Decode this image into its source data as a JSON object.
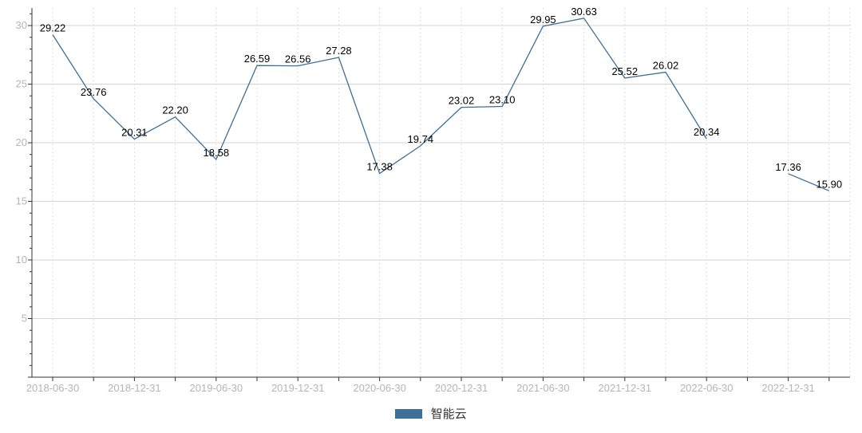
{
  "chart_data": {
    "type": "line",
    "x": [
      "2018-06-30",
      "2018-09-30",
      "2018-12-31",
      "2019-03-31",
      "2019-06-30",
      "2019-09-30",
      "2019-12-31",
      "2020-03-31",
      "2020-06-30",
      "2020-09-30",
      "2020-12-31",
      "2021-03-31",
      "2021-06-30",
      "2021-09-30",
      "2021-12-31",
      "2022-03-31",
      "2022-06-30",
      "2022-09-30",
      "2022-12-31",
      "2023-03-31"
    ],
    "x_tick_labels": [
      "2018-06-30",
      "2018-12-31",
      "2019-06-30",
      "2019-12-31",
      "2020-06-30",
      "2020-12-31",
      "2021-06-30",
      "2021-12-31",
      "2022-06-30",
      "2022-12-31"
    ],
    "y_ticks": [
      5,
      10,
      15,
      20,
      25,
      30
    ],
    "ylim": [
      0,
      31.5
    ],
    "grid": true,
    "legend_position": "bottom-center",
    "series": [
      {
        "name": "智能云",
        "color": "#3c6f99",
        "values": [
          29.22,
          23.76,
          20.31,
          22.2,
          18.58,
          26.59,
          26.56,
          27.28,
          17.38,
          19.74,
          23.02,
          23.1,
          29.95,
          30.63,
          25.52,
          26.02,
          20.34,
          null,
          17.36,
          15.9
        ],
        "labels": [
          "29.22",
          "23.76",
          "20.31",
          "22.20",
          "18.58",
          "26.59",
          "26.56",
          "27.28",
          "17.38",
          "19.74",
          "23.02",
          "23.10",
          "29.95",
          "30.63",
          "25.52",
          "26.02",
          "20.34",
          "",
          "17.36",
          "15.90"
        ]
      }
    ]
  }
}
